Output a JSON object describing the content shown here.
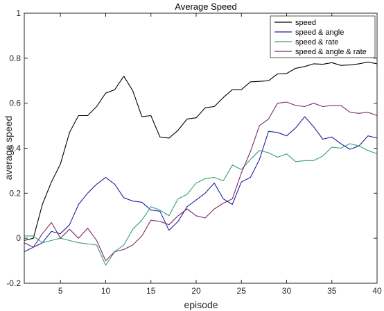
{
  "chart_data": {
    "type": "line",
    "title": "Average Speed",
    "xlabel": "episode",
    "ylabel": "average speed",
    "xlim": [
      1,
      40
    ],
    "ylim": [
      -0.2,
      1
    ],
    "xticks": [
      5,
      10,
      15,
      20,
      25,
      30,
      35,
      40
    ],
    "yticks": [
      -0.2,
      0,
      0.2,
      0.4,
      0.6,
      0.8,
      1
    ],
    "ytick_labels": [
      "-0.2",
      "0",
      "0.2",
      "0.4",
      "0.6",
      "0.8",
      "1"
    ],
    "grid": false,
    "legend_position": "top-right",
    "x": [
      1,
      2,
      3,
      4,
      5,
      6,
      7,
      8,
      9,
      10,
      11,
      12,
      13,
      14,
      15,
      16,
      17,
      18,
      19,
      20,
      21,
      22,
      23,
      24,
      25,
      26,
      27,
      28,
      29,
      30,
      31,
      32,
      33,
      34,
      35,
      36,
      37,
      38,
      39,
      40
    ],
    "series": [
      {
        "name": "speed",
        "color": "#000000",
        "values": [
          -0.01,
          0.0,
          0.15,
          0.25,
          0.33,
          0.47,
          0.545,
          0.545,
          0.585,
          0.645,
          0.66,
          0.72,
          0.655,
          0.54,
          0.545,
          0.45,
          0.445,
          0.48,
          0.53,
          0.535,
          0.58,
          0.585,
          0.625,
          0.66,
          0.66,
          0.695,
          0.697,
          0.7,
          0.73,
          0.732,
          0.755,
          0.763,
          0.775,
          0.773,
          0.78,
          0.768,
          0.77,
          0.775,
          0.783,
          0.775
        ]
      },
      {
        "name": "speed & angle",
        "color": "#1f1fa8",
        "values": [
          -0.06,
          -0.04,
          -0.02,
          0.03,
          0.02,
          0.06,
          0.15,
          0.2,
          0.24,
          0.27,
          0.24,
          0.18,
          0.165,
          0.16,
          0.125,
          0.12,
          0.035,
          0.075,
          0.14,
          0.17,
          0.2,
          0.245,
          0.175,
          0.15,
          0.25,
          0.27,
          0.35,
          0.475,
          0.47,
          0.455,
          0.49,
          0.54,
          0.495,
          0.44,
          0.45,
          0.42,
          0.395,
          0.41,
          0.455,
          0.445
        ]
      },
      {
        "name": "speed & rate",
        "color": "#3a9e7b",
        "values": [
          0.01,
          0.01,
          -0.02,
          -0.01,
          0.0,
          -0.01,
          -0.02,
          -0.025,
          -0.03,
          -0.12,
          -0.06,
          -0.03,
          0.04,
          0.08,
          0.14,
          0.125,
          0.1,
          0.175,
          0.195,
          0.245,
          0.265,
          0.27,
          0.255,
          0.325,
          0.305,
          0.35,
          0.39,
          0.38,
          0.36,
          0.375,
          0.34,
          0.345,
          0.345,
          0.365,
          0.405,
          0.4,
          0.42,
          0.41,
          0.39,
          0.375
        ]
      },
      {
        "name": "speed & angle & rate",
        "color": "#7a2a6a",
        "values": [
          -0.02,
          -0.04,
          0.02,
          0.07,
          0.0,
          0.04,
          0.0,
          0.045,
          -0.01,
          -0.1,
          -0.06,
          -0.05,
          -0.03,
          0.01,
          0.08,
          0.075,
          0.06,
          0.1,
          0.13,
          0.1,
          0.09,
          0.13,
          0.155,
          0.175,
          0.29,
          0.385,
          0.5,
          0.53,
          0.6,
          0.605,
          0.59,
          0.585,
          0.6,
          0.585,
          0.59,
          0.59,
          0.56,
          0.555,
          0.56,
          0.545
        ]
      }
    ]
  }
}
